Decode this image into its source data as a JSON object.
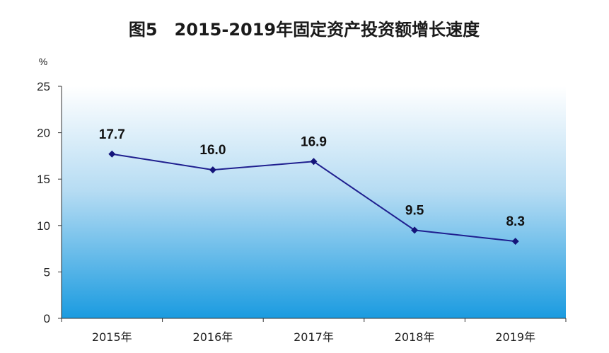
{
  "chart_data": {
    "type": "line",
    "title": "图5　2015-2019年固定资产投资额增长速度",
    "ylabel": "%",
    "xlabel": "",
    "categories": [
      "2015年",
      "2016年",
      "2017年",
      "2018年",
      "2019年"
    ],
    "series": [
      {
        "values": [
          17.7,
          16.0,
          16.9,
          9.5,
          8.3
        ]
      }
    ],
    "data_labels": [
      "17.7",
      "16.0",
      "16.9",
      "9.5",
      "8.3"
    ],
    "y_ticks": [
      "0",
      "5",
      "10",
      "15",
      "20",
      "25"
    ],
    "ylim": [
      0,
      25
    ],
    "grid": false,
    "legend": "none",
    "colors": {
      "line": "#1f1f8f",
      "marker": "#14147a",
      "bg_top": "#ffffff",
      "bg_bottom": "#1a9be0"
    }
  }
}
